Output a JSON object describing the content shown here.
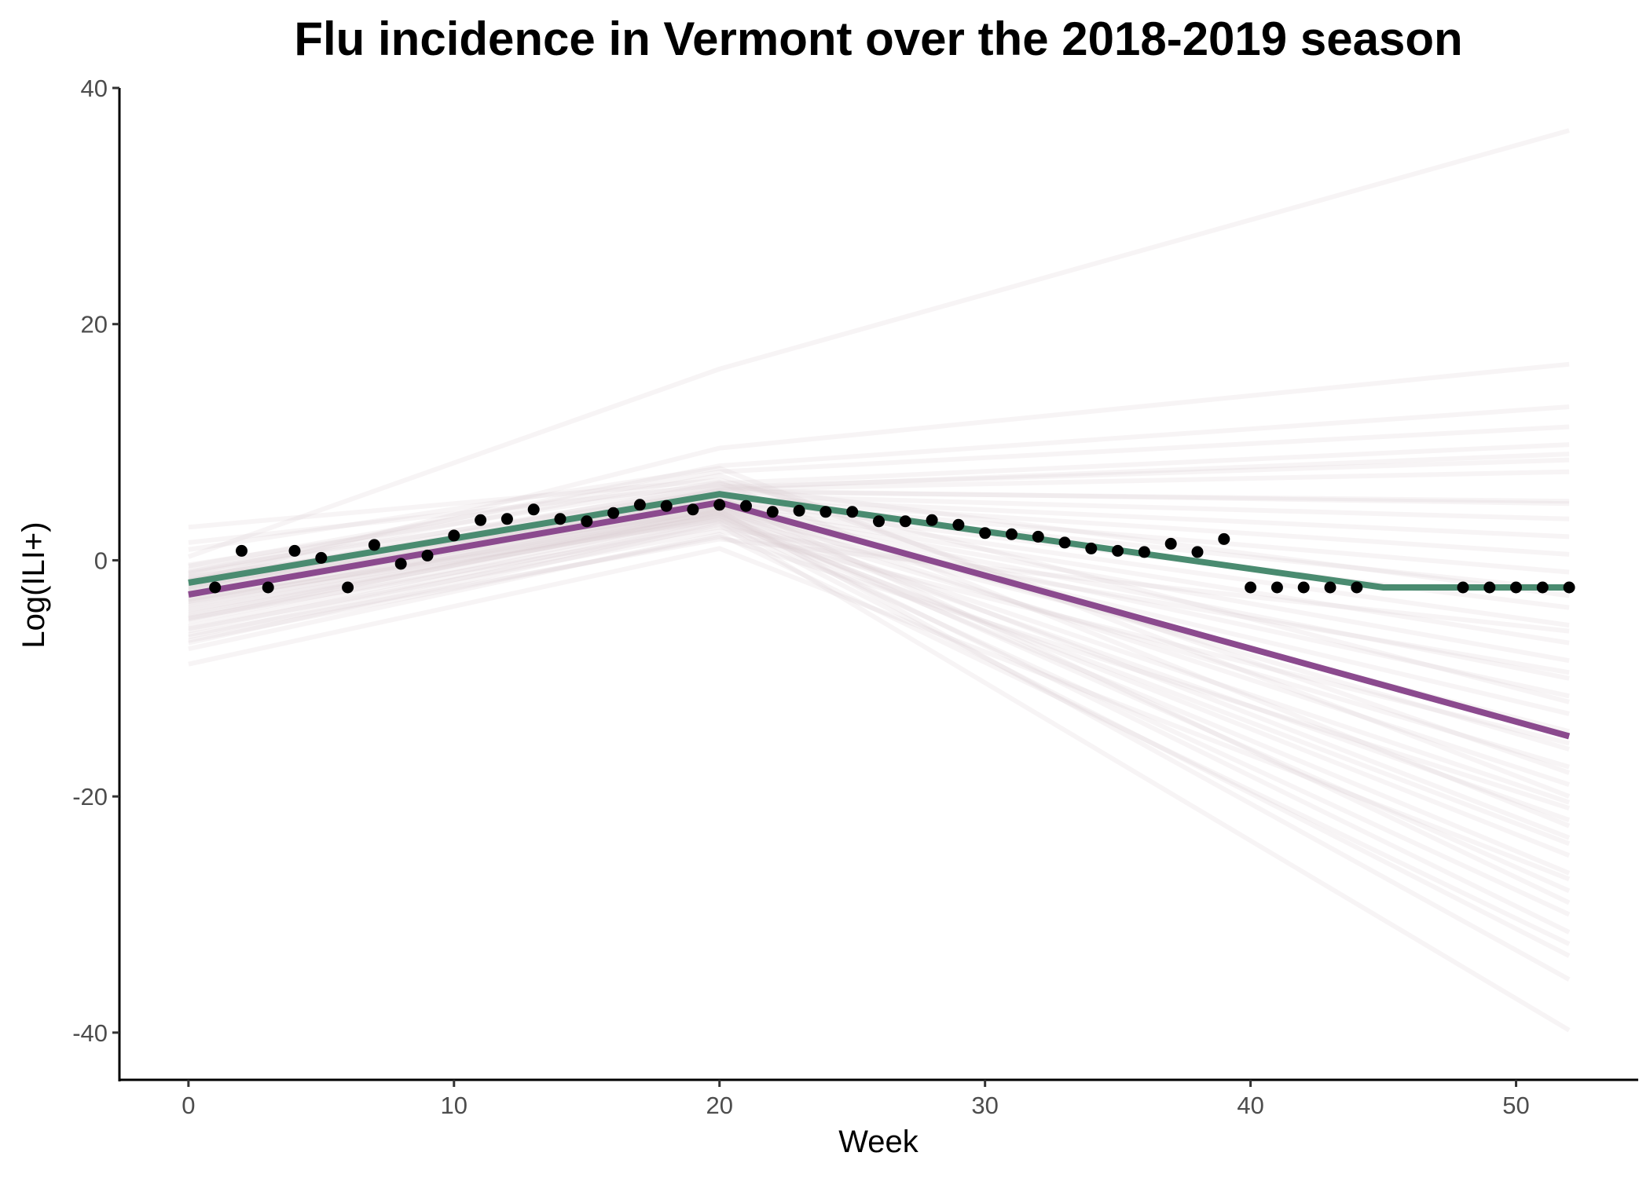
{
  "chart_data": {
    "type": "line",
    "title": "Flu incidence in Vermont over the 2018-2019 season",
    "xlabel": "Week",
    "ylabel": "Log(ILI+)",
    "xlim": [
      -2.6,
      54.6
    ],
    "ylim": [
      -44,
      40
    ],
    "x_ticks": [
      0,
      10,
      20,
      30,
      40,
      50
    ],
    "y_ticks": [
      -40,
      -20,
      0,
      20,
      40
    ],
    "grid": false,
    "legend": "none",
    "colors": {
      "observed": "#000000",
      "green_fit": "#4a8b70",
      "purple_fit": "#8b4a8e",
      "simulations": "#d9cfd0"
    },
    "observed": {
      "x": [
        1,
        2,
        3,
        4,
        5,
        6,
        7,
        8,
        9,
        10,
        11,
        12,
        13,
        14,
        15,
        16,
        17,
        18,
        19,
        20,
        21,
        22,
        23,
        24,
        25,
        26,
        27,
        28,
        29,
        30,
        31,
        32,
        33,
        34,
        35,
        36,
        37,
        38,
        39,
        40,
        41,
        42,
        43,
        44,
        48,
        49,
        50,
        51,
        52
      ],
      "y": [
        -2.3,
        0.8,
        -2.3,
        0.8,
        0.2,
        -2.3,
        1.3,
        -0.3,
        0.4,
        2.1,
        3.4,
        3.5,
        4.3,
        3.5,
        3.3,
        4.0,
        4.7,
        4.6,
        4.3,
        4.7,
        4.6,
        4.1,
        4.2,
        4.1,
        4.1,
        3.3,
        3.3,
        3.4,
        3.0,
        2.3,
        2.2,
        2.0,
        1.5,
        1.0,
        0.8,
        0.7,
        1.4,
        0.7,
        1.8,
        -2.3,
        -2.3,
        -2.3,
        -2.3,
        -2.3,
        -2.3,
        -2.3,
        -2.3,
        -2.3,
        -2.3
      ]
    },
    "series": [
      {
        "x": [
          0,
          20,
          45,
          52
        ],
        "y": [
          -1.9,
          5.6,
          -2.3,
          -2.3
        ]
      },
      {
        "x": [
          0,
          20,
          52
        ],
        "y": [
          -2.9,
          4.9,
          -14.9
        ]
      }
    ],
    "simulations": {
      "x": [
        0,
        20,
        52
      ],
      "y": [
        [
          0.3,
          16.2,
          36.4
        ],
        [
          -1.8,
          9.5,
          16.6
        ],
        [
          -1.0,
          8.0,
          13.0
        ],
        [
          -0.5,
          7.5,
          11.3
        ],
        [
          -2.0,
          6.5,
          9.8
        ],
        [
          -1.2,
          6.2,
          8.5
        ],
        [
          -2.5,
          6.0,
          7.5
        ],
        [
          -0.8,
          5.8,
          5.0
        ],
        [
          -1.5,
          5.5,
          3.5
        ],
        [
          -3.0,
          5.3,
          2.0
        ],
        [
          -2.2,
          5.2,
          0.5
        ],
        [
          -1.9,
          5.0,
          -1.0
        ],
        [
          -3.4,
          4.9,
          -2.5
        ],
        [
          -2.6,
          4.8,
          -4.0
        ],
        [
          -1.4,
          4.6,
          -5.5
        ],
        [
          -4.0,
          4.5,
          -7.0
        ],
        [
          -2.8,
          4.4,
          -8.5
        ],
        [
          -3.6,
          4.3,
          -10.0
        ],
        [
          -2.1,
          4.2,
          -11.5
        ],
        [
          -4.4,
          4.1,
          -13.0
        ],
        [
          -3.2,
          4.0,
          -14.5
        ],
        [
          -1.6,
          5.1,
          -16.0
        ],
        [
          -4.8,
          3.9,
          -17.5
        ],
        [
          -2.4,
          4.7,
          -19.0
        ],
        [
          -3.8,
          3.8,
          -20.5
        ],
        [
          -5.2,
          3.7,
          -22.0
        ],
        [
          -2.9,
          4.4,
          -23.5
        ],
        [
          -4.2,
          3.6,
          -25.0
        ],
        [
          -5.6,
          3.5,
          -26.5
        ],
        [
          -3.5,
          4.0,
          -28.0
        ],
        [
          -6.0,
          3.3,
          -30.0
        ],
        [
          -4.6,
          3.8,
          -31.5
        ],
        [
          -6.5,
          3.2,
          -33.5
        ],
        [
          -5.0,
          4.2,
          -35.5
        ],
        [
          -7.0,
          3.0,
          -39.8
        ],
        [
          -8.8,
          1.0,
          -27.0
        ],
        [
          -0.4,
          6.6,
          -22.5
        ],
        [
          -1.1,
          7.2,
          -18.0
        ],
        [
          2.8,
          6.8,
          -12.0
        ],
        [
          -6.3,
          1.8,
          -6.0
        ],
        [
          1.5,
          6.4,
          -3.0
        ],
        [
          -7.5,
          2.2,
          -32.5
        ],
        [
          -3.0,
          5.9,
          4.8
        ],
        [
          -2.3,
          6.1,
          9.0
        ],
        [
          -4.9,
          2.8,
          -9.5
        ],
        [
          -5.8,
          2.5,
          -15.5
        ],
        [
          0.9,
          7.8,
          -20.0
        ],
        [
          -3.3,
          3.4,
          -24.0
        ],
        [
          -1.7,
          5.4,
          -29.0
        ],
        [
          -6.8,
          2.0,
          -21.0
        ]
      ]
    }
  }
}
